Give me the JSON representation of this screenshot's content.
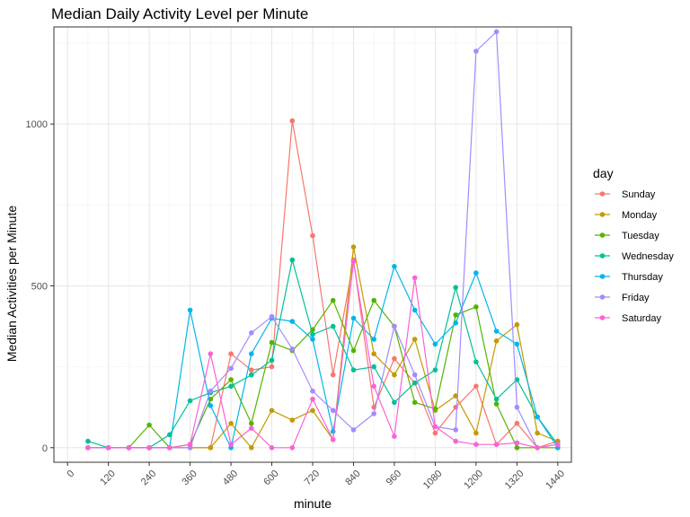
{
  "chart_data": {
    "type": "line",
    "title": "Median Daily Activity Level per Minute",
    "xlabel": "minute",
    "ylabel": "Median Activities per Minute",
    "xlim": [
      -40,
      1480
    ],
    "ylim": [
      -45,
      1300
    ],
    "x_ticks": [
      0,
      120,
      240,
      360,
      480,
      600,
      720,
      840,
      960,
      1080,
      1200,
      1320,
      1440
    ],
    "x_tick_labels": [
      "0",
      "120",
      "240",
      "360",
      "480",
      "600",
      "720",
      "840",
      "960",
      "1080",
      "1200",
      "1320",
      "1440"
    ],
    "y_ticks": [
      0,
      500,
      1000
    ],
    "y_tick_labels": [
      "0",
      "500",
      "1000"
    ],
    "y_minor_ticks": [
      250,
      750,
      1250
    ],
    "x_minor_ticks": [
      60,
      180,
      300,
      420,
      540,
      660,
      780,
      900,
      1020,
      1140,
      1260,
      1380
    ],
    "grid": true,
    "legend_title": "day",
    "legend_position": "right",
    "x": [
      60,
      120,
      180,
      240,
      300,
      360,
      420,
      480,
      540,
      600,
      660,
      720,
      780,
      840,
      900,
      960,
      1020,
      1080,
      1140,
      1200,
      1260,
      1320,
      1380,
      1440
    ],
    "series": [
      {
        "name": "Sunday",
        "color": "#F8766D",
        "values": [
          0,
          0,
          0,
          0,
          0,
          0,
          0,
          290,
          240,
          250,
          1010,
          655,
          225,
          580,
          125,
          275,
          200,
          45,
          125,
          190,
          10,
          75,
          0,
          20
        ]
      },
      {
        "name": "Monday",
        "color": "#C49A00",
        "values": [
          0,
          0,
          0,
          0,
          0,
          0,
          0,
          75,
          0,
          115,
          85,
          115,
          25,
          620,
          290,
          225,
          335,
          115,
          160,
          45,
          330,
          380,
          45,
          20
        ]
      },
      {
        "name": "Tuesday",
        "color": "#53B400",
        "values": [
          0,
          0,
          0,
          70,
          0,
          10,
          150,
          210,
          75,
          325,
          300,
          365,
          455,
          300,
          455,
          375,
          140,
          120,
          410,
          435,
          135,
          0,
          0,
          0
        ]
      },
      {
        "name": "Wednesday",
        "color": "#00C094",
        "values": [
          20,
          0,
          0,
          0,
          40,
          145,
          170,
          190,
          225,
          270,
          580,
          350,
          375,
          240,
          250,
          140,
          200,
          240,
          495,
          265,
          150,
          210,
          95,
          10
        ]
      },
      {
        "name": "Thursday",
        "color": "#00B6EB",
        "values": [
          0,
          0,
          0,
          0,
          0,
          425,
          130,
          0,
          290,
          400,
          390,
          335,
          50,
          400,
          335,
          560,
          425,
          320,
          385,
          540,
          360,
          320,
          95,
          0
        ]
      },
      {
        "name": "Friday",
        "color": "#A58AFF",
        "values": [
          0,
          0,
          0,
          0,
          0,
          0,
          175,
          245,
          355,
          405,
          305,
          175,
          115,
          55,
          105,
          375,
          225,
          65,
          55,
          1225,
          1285,
          125,
          0,
          10
        ]
      },
      {
        "name": "Saturday",
        "color": "#FB61D7",
        "values": [
          0,
          0,
          0,
          0,
          0,
          10,
          290,
          10,
          60,
          0,
          0,
          150,
          25,
          575,
          190,
          35,
          525,
          65,
          20,
          10,
          10,
          15,
          0,
          10
        ]
      }
    ]
  }
}
